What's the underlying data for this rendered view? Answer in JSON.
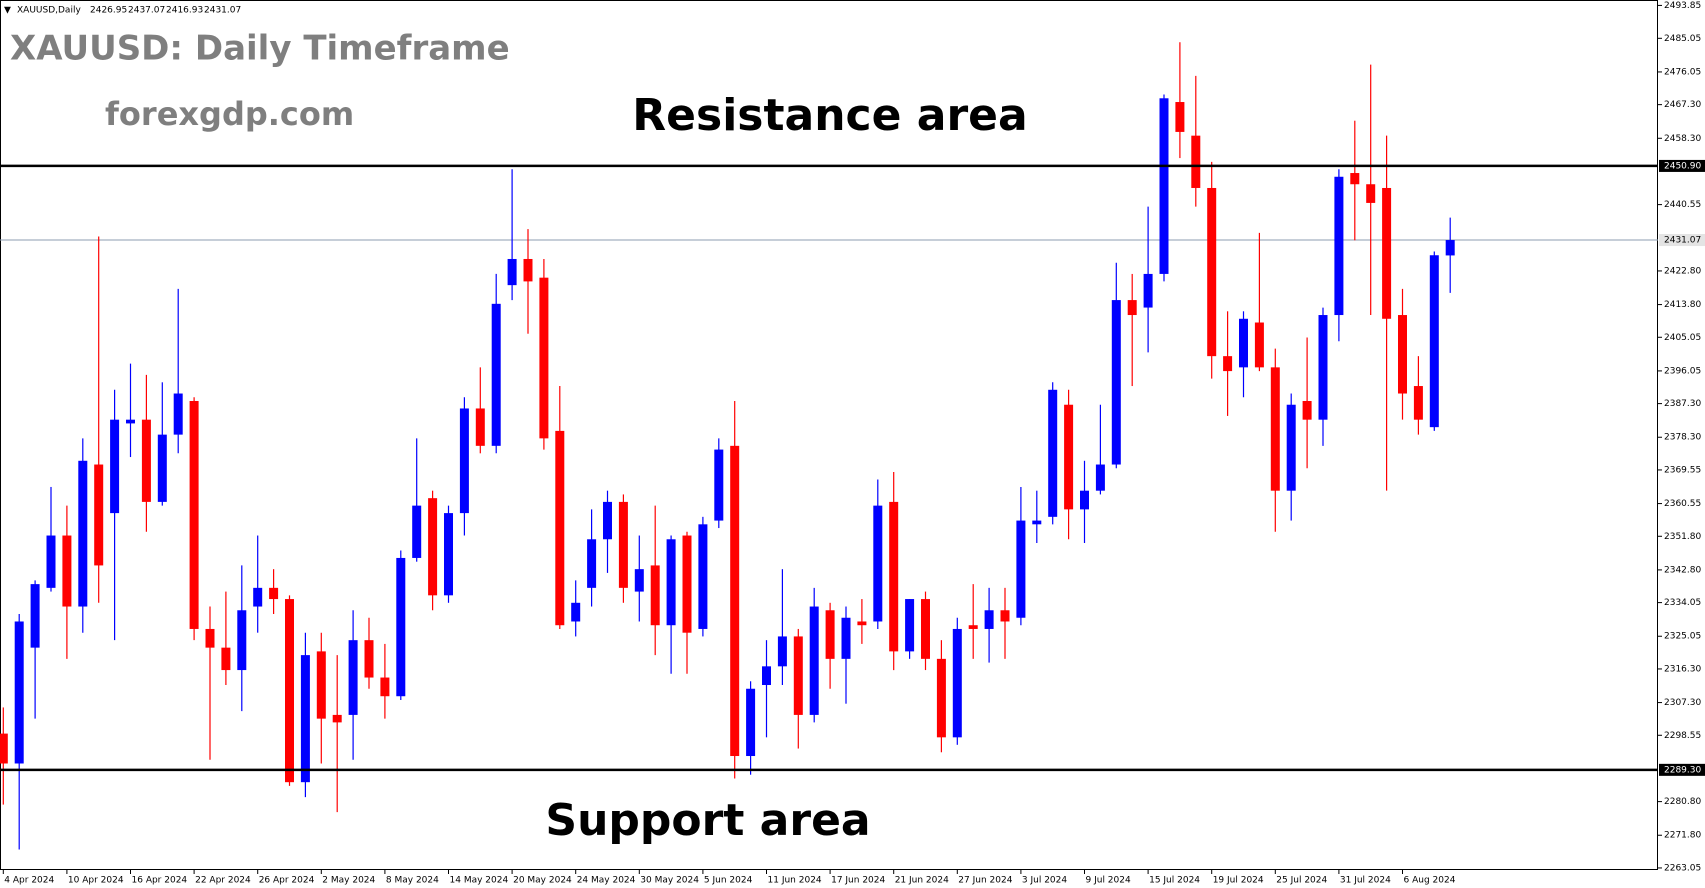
{
  "chart_data": {
    "type": "candlestick",
    "title": "XAUUSD: Daily Timeframe",
    "subtitle": "forexgdp.com",
    "symbol": "XAUUSD,Daily",
    "annotations": [
      "Resistance area",
      "Support area"
    ],
    "colors": {
      "up": "#0000ff",
      "down": "#ff0000"
    },
    "categories": [
      "4 Apr 2024",
      null,
      null,
      null,
      "10 Apr 2024",
      null,
      null,
      null,
      "16 Apr 2024",
      null,
      null,
      null,
      "22 Apr 2024",
      null,
      null,
      null,
      "26 Apr 2024",
      null,
      null,
      null,
      "2 May 2024",
      null,
      null,
      null,
      "8 May 2024",
      null,
      null,
      null,
      "14 May 2024",
      null,
      null,
      null,
      "20 May 2024",
      null,
      null,
      null,
      "24 May 2024",
      null,
      null,
      null,
      "30 May 2024",
      null,
      null,
      null,
      "5 Jun 2024",
      null,
      null,
      null,
      "11 Jun 2024",
      null,
      null,
      null,
      "17 Jun 2024",
      null,
      null,
      null,
      "21 Jun 2024",
      null,
      null,
      null,
      "27 Jun 2024",
      null,
      null,
      null,
      "3 Jul 2024",
      null,
      null,
      null,
      "9 Jul 2024",
      null,
      null,
      null,
      "15 Jul 2024",
      null,
      null,
      null,
      "19 Jul 2024",
      null,
      null,
      null,
      "25 Jul 2024",
      null,
      null,
      null,
      "31 Jul 2024",
      null,
      null,
      null,
      "6 Aug 2024",
      null,
      null,
      null
    ],
    "open": [
      2299,
      2291,
      2322,
      2338,
      2352,
      2333,
      2371,
      2358,
      2382,
      2383,
      2361,
      2379,
      2388,
      2327,
      2322,
      2316,
      2333,
      2338,
      2335,
      2286,
      2321,
      2304,
      2304,
      2324,
      2314,
      2309,
      2346,
      2362,
      2336,
      2358,
      2386,
      2376,
      2419,
      2426,
      2421,
      2380,
      2329,
      2338,
      2351,
      2361,
      2337,
      2344,
      2328,
      2352,
      2327,
      2356,
      2376,
      2293,
      2312,
      2317,
      2325,
      2304,
      2332,
      2319,
      2329,
      2329,
      2361,
      2321,
      2335,
      2319,
      2298,
      2328,
      2327,
      2332,
      2330,
      2355,
      2357,
      2387,
      2359,
      2364,
      2371,
      2415,
      2413,
      2422,
      2468,
      2459,
      2445,
      2400,
      2397,
      2409,
      2397,
      2364,
      2388,
      2383,
      2411,
      2449,
      2446,
      2445,
      2411,
      2392,
      2381,
      2426.95
    ],
    "high": [
      2306,
      2331,
      2340,
      2365,
      2360,
      2378,
      2432,
      2391,
      2398,
      2395,
      2393,
      2418,
      2389,
      2333,
      2337,
      2344,
      2352,
      2343,
      2336,
      2326,
      2326,
      2320,
      2332,
      2330,
      2323,
      2348,
      2378,
      2364,
      2360,
      2389,
      2397,
      2422,
      2450,
      2434,
      2426,
      2392,
      2340,
      2359,
      2364,
      2363,
      2352,
      2360,
      2352,
      2353,
      2357,
      2378,
      2388,
      2313,
      2324,
      2343,
      2327,
      2338,
      2334,
      2333,
      2335,
      2367,
      2369,
      2335,
      2337,
      2324,
      2330,
      2339,
      2338,
      2338,
      2365,
      2364,
      2393,
      2391,
      2372,
      2387,
      2425,
      2422,
      2440,
      2470,
      2484,
      2475,
      2452,
      2412,
      2412,
      2433,
      2402,
      2390,
      2405,
      2413,
      2450,
      2463,
      2478,
      2459,
      2418,
      2400,
      2428,
      2437.07
    ],
    "low": [
      2280,
      2268,
      2303,
      2337,
      2319,
      2326,
      2334,
      2324,
      2373,
      2353,
      2360,
      2374,
      2324,
      2292,
      2312,
      2305,
      2326,
      2331,
      2285,
      2282,
      2291,
      2278,
      2292,
      2311,
      2303,
      2308,
      2345,
      2332,
      2334,
      2352,
      2374,
      2374,
      2415,
      2406,
      2375,
      2327,
      2325,
      2333,
      2342,
      2334,
      2329,
      2320,
      2315,
      2315,
      2325,
      2354,
      2287,
      2288,
      2298,
      2312,
      2295,
      2302,
      2311,
      2307,
      2323,
      2327,
      2316,
      2319,
      2316,
      2294,
      2296,
      2319,
      2318,
      2319,
      2328,
      2350,
      2355,
      2351,
      2350,
      2363,
      2370,
      2392,
      2401,
      2420,
      2453,
      2440,
      2394,
      2384,
      2389,
      2396,
      2353,
      2356,
      2370,
      2376,
      2404,
      2431,
      2411,
      2364,
      2383,
      2379,
      2380,
      2416.93
    ],
    "close": [
      2291,
      2329,
      2339,
      2352,
      2333,
      2372,
      2344,
      2383,
      2383,
      2361,
      2379,
      2390,
      2327,
      2322,
      2316,
      2332,
      2338,
      2335,
      2286,
      2320,
      2303,
      2302,
      2324,
      2314,
      2309,
      2346,
      2360,
      2336,
      2358,
      2386,
      2376,
      2414,
      2426,
      2420,
      2378,
      2328,
      2334,
      2351,
      2361,
      2338,
      2343,
      2328,
      2351,
      2326,
      2355,
      2375,
      2293,
      2311,
      2317,
      2325,
      2304,
      2333,
      2319,
      2330,
      2328,
      2360,
      2321,
      2335,
      2319,
      2298,
      2327,
      2327,
      2332,
      2329,
      2356,
      2356,
      2391,
      2359,
      2364,
      2371,
      2415,
      2411,
      2422,
      2469,
      2460,
      2445,
      2400,
      2396,
      2410,
      2397,
      2364,
      2387,
      2383,
      2411,
      2448,
      2446,
      2441,
      2410,
      2390,
      2383,
      2427,
      2431.07
    ],
    "ylim": [
      2262.5,
      2495.3
    ],
    "yticks": [
      2493.85,
      2485.05,
      2476.05,
      {
        "value": 2467.3,
        "label": "2467.30"
      },
      {
        "value": 2458.3,
        "label": "2458.30"
      },
      2440.55,
      {
        "value": 2422.8,
        "label": "2422.80"
      },
      {
        "value": 2413.8,
        "label": "2413.80"
      },
      2405.05,
      2396.05,
      {
        "value": 2387.3,
        "label": "2387.30"
      },
      {
        "value": 2378.3,
        "label": "2378.30"
      },
      2369.55,
      2360.55,
      {
        "value": 2351.8,
        "label": "2351.80"
      },
      {
        "value": 2342.8,
        "label": "2342.80"
      },
      2334.05,
      2325.05,
      {
        "value": 2316.3,
        "label": "2316.30"
      },
      {
        "value": 2307.3,
        "label": "2307.30"
      },
      2298.55,
      {
        "value": 2280.8,
        "label": "2280.80"
      },
      {
        "value": 2271.8,
        "label": "2271.80"
      },
      2263.05
    ],
    "levels": [
      {
        "value": 2450.9,
        "label": "2450.90"
      },
      {
        "value": 2289.3,
        "label": "2289.30"
      }
    ]
  }
}
